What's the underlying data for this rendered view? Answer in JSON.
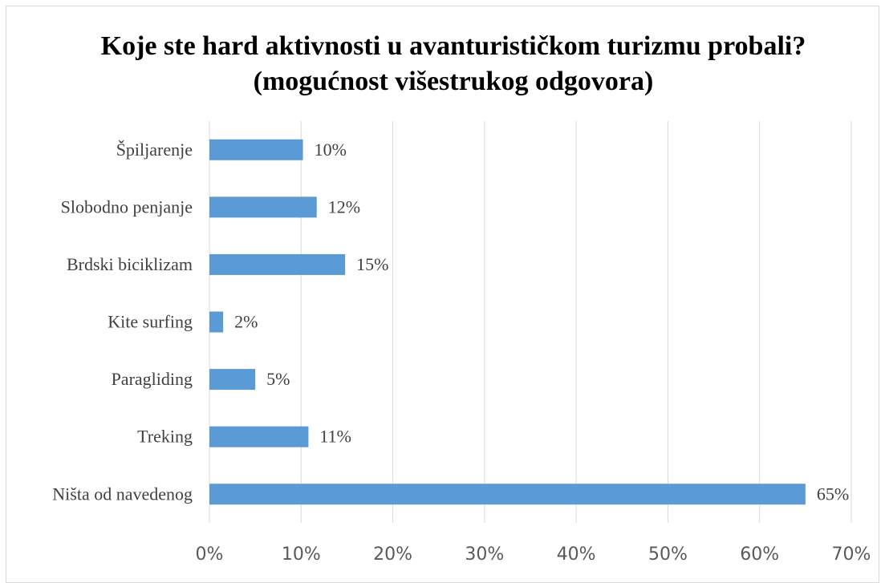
{
  "chart_data": {
    "type": "bar",
    "orientation": "horizontal",
    "title": "Koje ste hard aktivnosti u avanturističkom turizmu probali? (mogućnost višestrukog odgovora)",
    "categories": [
      "Špiljarenje",
      "Slobodno penjanje",
      "Brdski biciklizam",
      "Kite surfing",
      "Paragliding",
      "Treking",
      "Ništa od navedenog"
    ],
    "values": [
      10.2,
      11.7,
      14.8,
      1.5,
      5.0,
      10.8,
      65
    ],
    "value_labels": [
      "10%",
      "12%",
      "15%",
      "2%",
      "5%",
      "11%",
      "65%"
    ],
    "color": "#5b9bd5",
    "xlim": [
      0,
      70
    ],
    "xticks": [
      {
        "value": 0,
        "label": "0%"
      },
      {
        "value": 10,
        "label": "10%"
      },
      {
        "value": 20,
        "label": "20%"
      },
      {
        "value": 30,
        "label": "30%"
      },
      {
        "value": 40,
        "label": "40%"
      },
      {
        "value": 50,
        "label": "50%"
      },
      {
        "value": 60,
        "label": "60%"
      },
      {
        "value": 70,
        "label": "70%"
      }
    ],
    "grid": true
  }
}
